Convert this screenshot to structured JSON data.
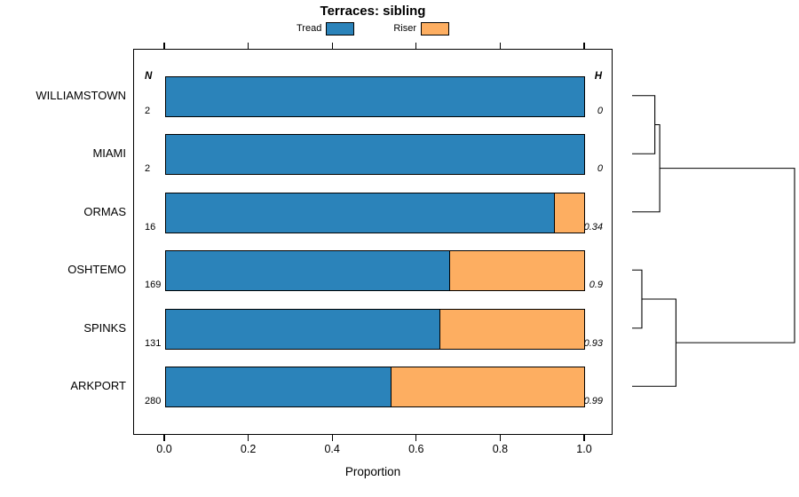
{
  "title": "Terraces: sibling",
  "legend": [
    {
      "label": "Tread",
      "color": "#2B83BA"
    },
    {
      "label": "Riser",
      "color": "#FDAE61"
    }
  ],
  "chart_data": {
    "type": "bar",
    "orientation": "horizontal-stacked",
    "title": "Terraces: sibling",
    "categories": [
      "WILLIAMSTOWN",
      "MIAMI",
      "ORMAS",
      "OSHTEMO",
      "SPINKS",
      "ARKPORT"
    ],
    "series": [
      {
        "name": "Tread",
        "color": "#2B83BA",
        "values": [
          1.0,
          1.0,
          0.93,
          0.68,
          0.655,
          0.54
        ]
      },
      {
        "name": "Riser",
        "color": "#FDAE61",
        "values": [
          0.0,
          0.0,
          0.07,
          0.32,
          0.345,
          0.46
        ]
      }
    ],
    "n_header": "N",
    "n_values": [
      "2",
      "2",
      "16",
      "169",
      "131",
      "280"
    ],
    "h_header": "H",
    "h_values": [
      "0",
      "0",
      "0.34",
      "0.9",
      "0.93",
      "0.99"
    ],
    "xlabel": "Proportion",
    "x_ticks": [
      "0.0",
      "0.2",
      "0.4",
      "0.6",
      "0.8",
      "1.0"
    ],
    "xlim": [
      0,
      1
    ],
    "grid": false,
    "legend_position": "top",
    "dendrogram": {
      "leaf_order": [
        "WILLIAMSTOWN",
        "MIAMI",
        "ORMAS",
        "OSHTEMO",
        "SPINKS",
        "ARKPORT"
      ],
      "merges": [
        {
          "a": "L0",
          "b": "L1",
          "h": 0.14
        },
        {
          "a": "M0",
          "b": "L2",
          "h": 0.17
        },
        {
          "a": "L3",
          "b": "L4",
          "h": 0.06
        },
        {
          "a": "M2",
          "b": "L5",
          "h": 0.27
        },
        {
          "a": "M1",
          "b": "M3",
          "h": 1.0
        }
      ]
    }
  }
}
